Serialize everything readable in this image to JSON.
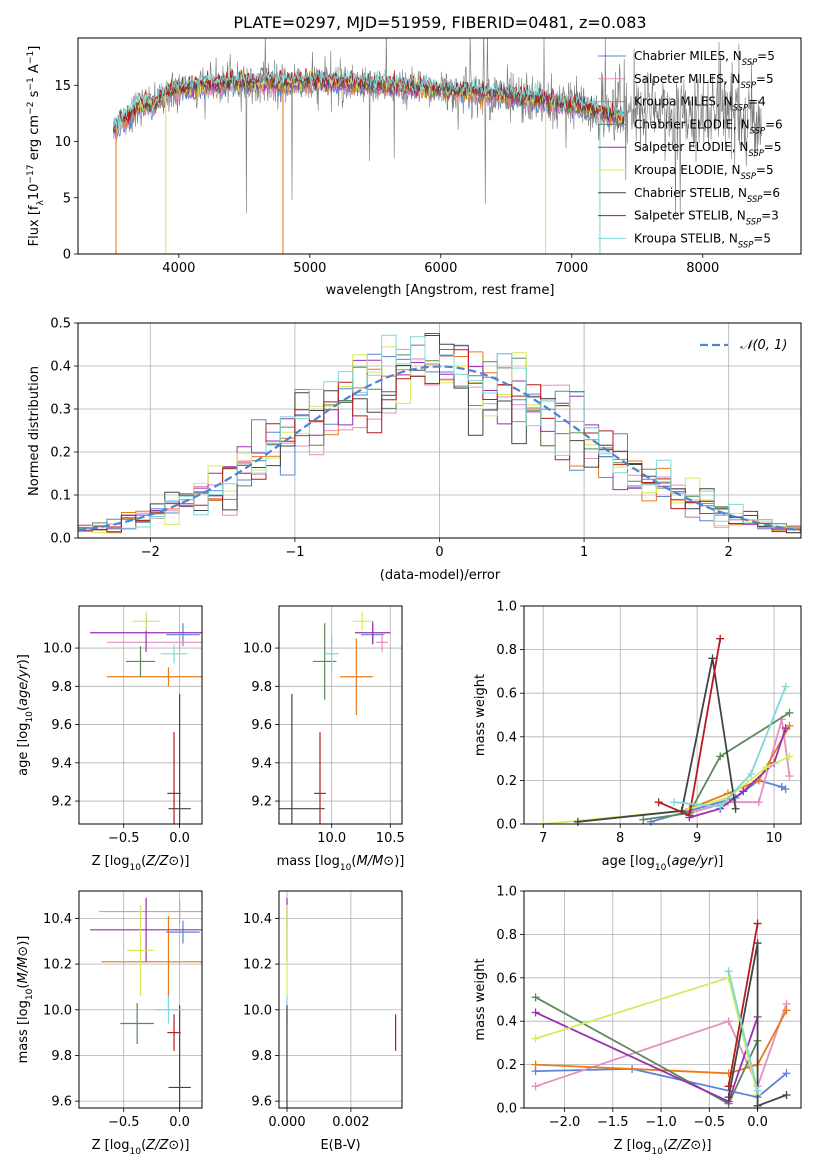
{
  "colors": {
    "chabrier_miles": "#5b84d6",
    "salpeter_miles": "#e38fc0",
    "kroupa_miles": "#ea7a1a",
    "chabrier_elodie": "#5a8a5a",
    "salpeter_elodie": "#9a2fb0",
    "kroupa_elodie": "#d3ec5c",
    "chabrier_stelib": "#444444",
    "salpeter_stelib": "#b51d1d",
    "kroupa_stelib": "#7fd8d8",
    "data": "#777777",
    "gaussian": "#4a84d4",
    "grid": "#b0b0b0"
  },
  "chart_data": [
    {
      "type": "line",
      "title": "PLATE=0297, MJD=51959, FIBERID=0481, z=0.083",
      "xlabel": "wavelength [Angstrom, rest frame]",
      "ylabel_parts": [
        "Flux [f",
        "λ",
        "10",
        "−17",
        " erg cm",
        "−2",
        " s",
        "−1",
        " A",
        "−1",
        "]"
      ],
      "xlim": [
        3230,
        8750
      ],
      "ylim": [
        0,
        19.2
      ],
      "xticks": [
        "4000",
        "5000",
        "6000",
        "7000",
        "8000"
      ],
      "yticks": [
        "0",
        "5",
        "10",
        "15"
      ],
      "legend_position": "right",
      "legend": [
        {
          "label": "Chabrier MILES, N",
          "sub": "SSP",
          "eq": "=5",
          "color_key": "chabrier_miles"
        },
        {
          "label": "Salpeter MILES, N",
          "sub": "SSP",
          "eq": "=5",
          "color_key": "salpeter_miles"
        },
        {
          "label": "Kroupa MILES, N",
          "sub": "SSP",
          "eq": "=4",
          "color_key": "kroupa_miles"
        },
        {
          "label": "Chabrier ELODIE, N",
          "sub": "SSP",
          "eq": "=6",
          "color_key": "chabrier_elodie"
        },
        {
          "label": "Salpeter ELODIE, N",
          "sub": "SSP",
          "eq": "=5",
          "color_key": "salpeter_elodie"
        },
        {
          "label": "Kroupa ELODIE, N",
          "sub": "SSP",
          "eq": "=5",
          "color_key": "kroupa_elodie"
        },
        {
          "label": "Chabrier STELIB, N",
          "sub": "SSP",
          "eq": "=6",
          "color_key": "chabrier_stelib"
        },
        {
          "label": "Salpeter STELIB, N",
          "sub": "SSP",
          "eq": "=3",
          "color_key": "salpeter_stelib"
        },
        {
          "label": "Kroupa STELIB, N",
          "sub": "SSP",
          "eq": "=5",
          "color_key": "kroupa_stelib"
        }
      ],
      "spectrum_nodes": {
        "x": [
          3500,
          3560,
          3620,
          3680,
          3740,
          3800,
          3860,
          3930,
          4000,
          4100,
          4200,
          4300,
          4400,
          4500,
          4600,
          4700,
          4800,
          4900,
          5000,
          5200,
          5400,
          5600,
          5800,
          6000,
          6200,
          6400,
          6600,
          6800,
          7000,
          7200,
          7400
        ],
        "y": [
          11.0,
          11.8,
          12.3,
          13.0,
          13.4,
          13.2,
          13.8,
          14.4,
          14.6,
          14.8,
          15.1,
          15.0,
          15.3,
          15.2,
          15.3,
          15.2,
          15.1,
          15.2,
          15.3,
          15.3,
          15.1,
          14.9,
          14.8,
          14.6,
          14.4,
          14.2,
          13.9,
          13.6,
          13.2,
          12.7,
          12.0
        ]
      },
      "data_range": [
        3500,
        8450
      ],
      "model_range": [
        3500,
        7400
      ]
    },
    {
      "type": "bar",
      "xlabel": "(data-model)/error",
      "ylabel": "Normed distribution",
      "xlim": [
        -2.5,
        2.5
      ],
      "ylim": [
        0,
        0.5
      ],
      "xticks": [
        "−2",
        "−1",
        "0",
        "1",
        "2"
      ],
      "yticks": [
        "0.0",
        "0.1",
        "0.2",
        "0.3",
        "0.4",
        "0.5"
      ],
      "bin_width": 0.1,
      "legend": [
        {
          "label": "𝒩(0, 1)",
          "color_key": "gaussian"
        }
      ],
      "legend_position": "upper right"
    },
    {
      "type": "scatter",
      "xlabel": "Z [log10(Z/Z⊙)]",
      "ylabel": "age  [log10(age/yr)]",
      "xlim": [
        -0.9,
        0.2
      ],
      "ylim": [
        9.08,
        10.22
      ],
      "xticks": [
        "−0.5",
        "0.0"
      ],
      "yticks": [
        "9.2",
        "9.4",
        "9.6",
        "9.8",
        "10.0"
      ],
      "points": [
        {
          "key": "chabrier_miles",
          "x": 0.03,
          "y": 10.07,
          "xerr": 0.15,
          "yerr": 0.06
        },
        {
          "key": "salpeter_miles",
          "x": 0.0,
          "y": 10.03,
          "xerr": 0.65,
          "yerr": 0.04
        },
        {
          "key": "kroupa_miles",
          "x": -0.1,
          "y": 9.85,
          "xerr": 0.55,
          "yerr": 0.05
        },
        {
          "key": "chabrier_elodie",
          "x": -0.35,
          "y": 9.93,
          "xerr": 0.13,
          "yerr": 0.08
        },
        {
          "key": "salpeter_elodie",
          "x": -0.3,
          "y": 10.08,
          "xerr": 0.5,
          "yerr": 0.1
        },
        {
          "key": "kroupa_elodie",
          "x": -0.3,
          "y": 10.14,
          "xerr": 0.12,
          "yerr": 0.05
        },
        {
          "key": "chabrier_stelib",
          "x": 0.0,
          "y": 9.16,
          "xerr": 0.1,
          "yerr": 0.6
        },
        {
          "key": "salpeter_stelib",
          "x": -0.05,
          "y": 9.24,
          "xerr": 0.06,
          "yerr": 0.32
        },
        {
          "key": "kroupa_stelib",
          "x": -0.05,
          "y": 9.97,
          "xerr": 0.12,
          "yerr": 0.05
        }
      ]
    },
    {
      "type": "scatter",
      "xlabel": "mass [log10(M/M⊙)]",
      "ylabel": "",
      "xlim": [
        9.55,
        10.6
      ],
      "ylim": [
        9.08,
        10.22
      ],
      "xticks": [
        "10.0",
        "10.5"
      ],
      "yticks": [
        "9.2",
        "9.4",
        "9.6",
        "9.8",
        "10.0"
      ],
      "points": [
        {
          "key": "chabrier_miles",
          "x": 10.35,
          "y": 10.07,
          "xerr": 0.1,
          "yerr": 0.05
        },
        {
          "key": "salpeter_miles",
          "x": 10.43,
          "y": 10.03,
          "xerr": 0.05,
          "yerr": 0.05
        },
        {
          "key": "kroupa_miles",
          "x": 10.21,
          "y": 9.85,
          "xerr": 0.14,
          "yerr": 0.2
        },
        {
          "key": "chabrier_elodie",
          "x": 9.94,
          "y": 9.93,
          "xerr": 0.1,
          "yerr": 0.2
        },
        {
          "key": "salpeter_elodie",
          "x": 10.35,
          "y": 10.08,
          "xerr": 0.15,
          "yerr": 0.06
        },
        {
          "key": "kroupa_elodie",
          "x": 10.26,
          "y": 10.14,
          "xerr": 0.08,
          "yerr": 0.05
        },
        {
          "key": "chabrier_stelib",
          "x": 9.66,
          "y": 9.16,
          "xerr": 0.28,
          "yerr": 0.6
        },
        {
          "key": "salpeter_stelib",
          "x": 9.9,
          "y": 9.24,
          "xerr": 0.05,
          "yerr": 0.32
        },
        {
          "key": "kroupa_stelib",
          "x": 10.0,
          "y": 9.97,
          "xerr": 0.06,
          "yerr": 0.1
        }
      ]
    },
    {
      "type": "line",
      "xlabel": "age  [log10(age/yr)]",
      "ylabel": "mass weight",
      "xlim": [
        6.75,
        10.35
      ],
      "ylim": [
        0,
        1.0
      ],
      "xticks": [
        "7",
        "8",
        "9",
        "10"
      ],
      "yticks": [
        "0.0",
        "0.2",
        "0.4",
        "0.6",
        "0.8",
        "1.0"
      ],
      "series": [
        {
          "key": "chabrier_miles",
          "x": [
            8.4,
            8.9,
            9.5,
            9.8,
            10.1,
            10.15
          ],
          "y": [
            0.01,
            0.06,
            0.12,
            0.2,
            0.17,
            0.16
          ]
        },
        {
          "key": "salpeter_miles",
          "x": [
            8.9,
            9.4,
            9.8,
            10.1,
            10.2
          ],
          "y": [
            0.05,
            0.1,
            0.1,
            0.48,
            0.22
          ]
        },
        {
          "key": "kroupa_miles",
          "x": [
            8.9,
            9.4,
            9.8,
            10.2
          ],
          "y": [
            0.07,
            0.14,
            0.2,
            0.45
          ]
        },
        {
          "key": "chabrier_elodie",
          "x": [
            8.3,
            8.9,
            9.3,
            10.2
          ],
          "y": [
            0.02,
            0.05,
            0.31,
            0.51
          ]
        },
        {
          "key": "salpeter_elodie",
          "x": [
            8.9,
            9.3,
            9.6,
            10.0,
            10.15
          ],
          "y": [
            0.03,
            0.07,
            0.15,
            0.28,
            0.44
          ]
        },
        {
          "key": "kroupa_elodie",
          "x": [
            7.0,
            8.8,
            9.4,
            9.9,
            10.2
          ],
          "y": [
            0.0,
            0.06,
            0.12,
            0.26,
            0.31
          ]
        },
        {
          "key": "chabrier_stelib",
          "x": [
            7.45,
            8.8,
            9.2,
            9.5
          ],
          "y": [
            0.01,
            0.06,
            0.76,
            0.07
          ]
        },
        {
          "key": "salpeter_stelib",
          "x": [
            8.5,
            8.9,
            9.3
          ],
          "y": [
            0.1,
            0.04,
            0.85
          ]
        },
        {
          "key": "kroupa_stelib",
          "x": [
            8.7,
            9.3,
            9.7,
            10.15
          ],
          "y": [
            0.1,
            0.08,
            0.23,
            0.63
          ]
        }
      ]
    },
    {
      "type": "scatter",
      "xlabel": "Z [log10(Z/Z⊙)]",
      "ylabel": "mass [log10(M/M⊙)]",
      "xlim": [
        -0.9,
        0.2
      ],
      "ylim": [
        9.57,
        10.52
      ],
      "xticks": [
        "−0.5",
        "0.0"
      ],
      "yticks": [
        "9.6",
        "9.8",
        "10.0",
        "10.2",
        "10.4"
      ],
      "points": [
        {
          "key": "chabrier_miles",
          "x": 0.03,
          "y": 10.34,
          "xerr": 0.15,
          "yerr": 0.05
        },
        {
          "key": "salpeter_miles",
          "x": 0.0,
          "y": 10.43,
          "xerr": 0.72,
          "yerr": 0.05
        },
        {
          "key": "kroupa_miles",
          "x": -0.1,
          "y": 10.21,
          "xerr": 0.6,
          "yerr": 0.2
        },
        {
          "key": "chabrier_elodie",
          "x": -0.38,
          "y": 9.94,
          "xerr": 0.15,
          "yerr": 0.09
        },
        {
          "key": "salpeter_elodie",
          "x": -0.3,
          "y": 10.35,
          "xerr": 0.5,
          "yerr": 0.14
        },
        {
          "key": "kroupa_elodie",
          "x": -0.35,
          "y": 10.26,
          "xerr": 0.12,
          "yerr": 0.2
        },
        {
          "key": "chabrier_stelib",
          "x": 0.0,
          "y": 9.66,
          "xerr": 0.1,
          "yerr": 0.36
        },
        {
          "key": "salpeter_stelib",
          "x": -0.05,
          "y": 9.9,
          "xerr": 0.06,
          "yerr": 0.08
        },
        {
          "key": "kroupa_stelib",
          "x": -0.1,
          "y": 10.0,
          "xerr": 0.12,
          "yerr": 0.06
        }
      ]
    },
    {
      "type": "scatter",
      "xlabel": "E(B-V)",
      "ylabel": "",
      "xlim": [
        -0.00025,
        0.0036
      ],
      "ylim": [
        9.57,
        10.52
      ],
      "xticks": [
        "0.000",
        "0.002"
      ],
      "yticks": [
        "9.6",
        "9.8",
        "10.0",
        "10.2",
        "10.4"
      ],
      "points": [
        {
          "key": "salpeter_miles",
          "x": 0.0,
          "y": 10.43,
          "xerr": 0,
          "yerr": 0.05
        },
        {
          "key": "salpeter_elodie",
          "x": 0.0,
          "y": 10.35,
          "xerr": 0,
          "yerr": 0.14
        },
        {
          "key": "kroupa_elodie",
          "x": 0.0,
          "y": 10.26,
          "xerr": 0,
          "yerr": 0.2
        },
        {
          "key": "kroupa_stelib",
          "x": 0.0,
          "y": 10.0,
          "xerr": 0,
          "yerr": 0.06
        },
        {
          "key": "chabrier_stelib",
          "x": 0.0,
          "y": 9.66,
          "xerr": 0,
          "yerr": 0.36
        },
        {
          "key": "salpeter_stelib",
          "x": 0.0034,
          "y": 9.9,
          "xerr": 0,
          "yerr": 0.08
        }
      ]
    },
    {
      "type": "line",
      "xlabel": "Z [log10(Z/Z⊙)]",
      "ylabel": "mass weight",
      "xlim": [
        -2.42,
        0.45
      ],
      "ylim": [
        0,
        1.0
      ],
      "xticks": [
        "−2.0",
        "−1.5",
        "−1.0",
        "−0.5",
        "0.0"
      ],
      "yticks": [
        "0.0",
        "0.2",
        "0.4",
        "0.6",
        "0.8",
        "1.0"
      ],
      "series": [
        {
          "key": "chabrier_miles",
          "x": [
            -2.3,
            -1.3,
            0.0,
            0.3
          ],
          "y": [
            0.17,
            0.18,
            0.05,
            0.16
          ]
        },
        {
          "key": "salpeter_miles",
          "x": [
            -2.3,
            -0.3,
            0.0,
            0.3
          ],
          "y": [
            0.1,
            0.4,
            0.1,
            0.48
          ]
        },
        {
          "key": "kroupa_miles",
          "x": [
            -2.3,
            -0.3,
            0.0,
            0.3
          ],
          "y": [
            0.2,
            0.16,
            0.2,
            0.45
          ]
        },
        {
          "key": "chabrier_elodie",
          "x": [
            -2.3,
            -0.3,
            0.0
          ],
          "y": [
            0.51,
            0.02,
            0.31
          ]
        },
        {
          "key": "salpeter_elodie",
          "x": [
            -2.3,
            -0.3,
            0.0
          ],
          "y": [
            0.44,
            0.03,
            0.42
          ]
        },
        {
          "key": "kroupa_elodie",
          "x": [
            -2.3,
            -0.3,
            0.0
          ],
          "y": [
            0.32,
            0.6,
            0.06
          ]
        },
        {
          "key": "chabrier_stelib",
          "x": [
            -0.3,
            0.0,
            0.0,
            0.3
          ],
          "y": [
            0.05,
            0.76,
            0.01,
            0.06
          ]
        },
        {
          "key": "salpeter_stelib",
          "x": [
            -0.3,
            0.0
          ],
          "y": [
            0.1,
            0.85
          ]
        },
        {
          "key": "kroupa_stelib",
          "x": [
            -0.3,
            0.0
          ],
          "y": [
            0.63,
            0.08
          ]
        }
      ]
    }
  ]
}
